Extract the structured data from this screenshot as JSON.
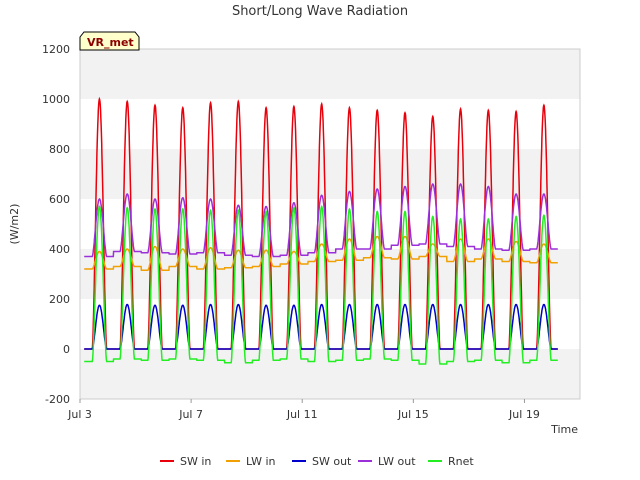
{
  "chart_data": {
    "type": "line",
    "title": "Short/Long Wave Radiation",
    "xlabel": "Time",
    "ylabel": "(W/m2)",
    "site_tag": "VR_met",
    "ylim": [
      -200,
      1200
    ],
    "yticks": [
      -200,
      0,
      200,
      400,
      600,
      800,
      1000,
      1200
    ],
    "xlim": [
      3.0,
      21.0
    ],
    "xticks": [
      {
        "value": 3,
        "label": "Jul 3"
      },
      {
        "value": 7,
        "label": "Jul 7"
      },
      {
        "value": 11,
        "label": "Jul 11"
      },
      {
        "value": 15,
        "label": "Jul 15"
      },
      {
        "value": 19,
        "label": "Jul 19"
      }
    ],
    "x_units": "day of July (noon peaks)",
    "grid": "horizontal alternating bands",
    "legend_position": "bottom",
    "days": [
      3.7,
      4.7,
      5.7,
      6.7,
      7.7,
      8.7,
      9.7,
      10.7,
      11.7,
      12.7,
      13.7,
      14.7,
      15.7,
      16.7,
      17.7,
      18.7,
      19.7
    ],
    "series": [
      {
        "name": "SW in",
        "color": "#e8000b",
        "baseline": [
          0,
          0,
          0,
          0,
          0,
          0,
          0,
          0,
          0,
          0,
          0,
          0,
          0,
          0,
          0,
          0,
          0
        ],
        "peaks": [
          1000,
          990,
          975,
          965,
          985,
          990,
          965,
          970,
          980,
          965,
          955,
          945,
          930,
          960,
          955,
          950,
          975
        ]
      },
      {
        "name": "LW in",
        "color": "#f0a000",
        "baseline": [
          320,
          330,
          315,
          330,
          320,
          325,
          330,
          340,
          350,
          355,
          365,
          360,
          370,
          350,
          360,
          350,
          345
        ],
        "peaks": [
          390,
          400,
          410,
          400,
          405,
          395,
          395,
          390,
          420,
          440,
          450,
          450,
          420,
          440,
          440,
          430,
          420
        ]
      },
      {
        "name": "SW out",
        "color": "#0000cc",
        "baseline": [
          0,
          0,
          0,
          0,
          0,
          0,
          0,
          0,
          0,
          0,
          0,
          0,
          0,
          0,
          0,
          0,
          0
        ],
        "peaks": [
          175,
          178,
          175,
          175,
          178,
          178,
          175,
          175,
          178,
          178,
          178,
          178,
          178,
          178,
          178,
          178,
          178
        ]
      },
      {
        "name": "LW out",
        "color": "#9b30d9",
        "baseline": [
          370,
          390,
          385,
          380,
          385,
          375,
          370,
          375,
          385,
          400,
          400,
          415,
          420,
          410,
          400,
          395,
          400
        ],
        "peaks": [
          600,
          620,
          600,
          605,
          600,
          575,
          570,
          585,
          615,
          630,
          640,
          650,
          660,
          660,
          650,
          620,
          620
        ]
      },
      {
        "name": "Rnet",
        "color": "#22ee22",
        "baseline": [
          -50,
          -40,
          -45,
          -40,
          -45,
          -55,
          -45,
          -40,
          -50,
          -45,
          -40,
          -45,
          -60,
          -50,
          -45,
          -55,
          -45
        ],
        "peaks": [
          570,
          565,
          560,
          560,
          555,
          555,
          550,
          565,
          570,
          560,
          550,
          550,
          530,
          520,
          520,
          530,
          535
        ]
      }
    ]
  }
}
